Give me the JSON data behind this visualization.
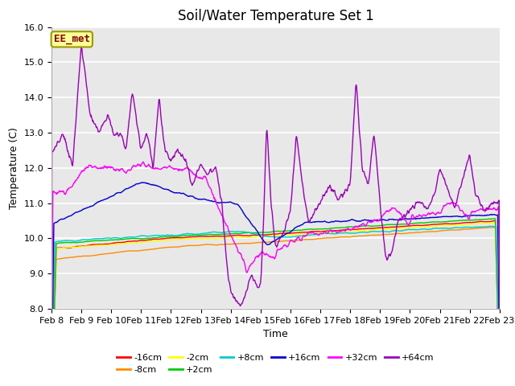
{
  "title": "Soil/Water Temperature Set 1",
  "xlabel": "Time",
  "ylabel": "Temperature (C)",
  "ylim": [
    8.0,
    16.0
  ],
  "yticks": [
    8.0,
    9.0,
    10.0,
    11.0,
    12.0,
    13.0,
    14.0,
    15.0,
    16.0
  ],
  "x_labels": [
    "Feb 8",
    "Feb 9",
    "Feb 10",
    "Feb 11",
    "Feb 12",
    "Feb 13",
    "Feb 14",
    "Feb 15",
    "Feb 16",
    "Feb 17",
    "Feb 18",
    "Feb 19",
    "Feb 20",
    "Feb 21",
    "Feb 22",
    "Feb 23"
  ],
  "annotation_text": "EE_met",
  "annotation_color": "#8B0000",
  "annotation_bg": "#FFFF99",
  "annotation_edge": "#999900",
  "bg_color": "#E8E8E8",
  "fig_bg": "#FFFFFF",
  "grid_color": "#FFFFFF",
  "series": [
    {
      "label": "-16cm",
      "color": "#FF0000"
    },
    {
      "label": "-8cm",
      "color": "#FF8C00"
    },
    {
      "label": "-2cm",
      "color": "#FFFF00"
    },
    {
      "label": "+2cm",
      "color": "#00CC00"
    },
    {
      "label": "+8cm",
      "color": "#00CCCC"
    },
    {
      "label": "+16cm",
      "color": "#0000CC"
    },
    {
      "label": "+32cm",
      "color": "#FF00FF"
    },
    {
      "label": "+64cm",
      "color": "#9900BB"
    }
  ],
  "linewidth": 1.0,
  "title_fontsize": 12,
  "axis_fontsize": 9,
  "tick_fontsize": 8,
  "legend_fontsize": 8
}
